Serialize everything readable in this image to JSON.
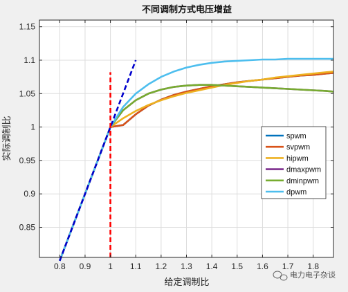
{
  "chart_data": {
    "type": "line",
    "title": "不同调制方式电压增益",
    "xlabel": "给定调制比",
    "ylabel": "实际调制比",
    "xlim": [
      0.72,
      1.88
    ],
    "ylim": [
      0.805,
      1.16
    ],
    "xticks": [
      0.8,
      0.9,
      1,
      1.1,
      1.2,
      1.3,
      1.4,
      1.5,
      1.6,
      1.7,
      1.8
    ],
    "xtick_labels": [
      "0.8",
      "0.9",
      "1",
      "1.1",
      "1.2",
      "1.3",
      "1.4",
      "1.5",
      "1.6",
      "1.7",
      "1.8"
    ],
    "yticks": [
      0.85,
      0.9,
      0.95,
      1,
      1.05,
      1.1,
      1.15
    ],
    "ytick_labels": [
      "0.85",
      "0.9",
      "0.95",
      "1",
      "1.05",
      "1.1",
      "1.15"
    ],
    "grid": true,
    "legend_position": "right",
    "series": [
      {
        "name": "spwm",
        "color": "#0072bd",
        "x": [
          0.8,
          0.85,
          0.9,
          0.95,
          1.0,
          1.05,
          1.1,
          1.15,
          1.2,
          1.25,
          1.3,
          1.35,
          1.4,
          1.45,
          1.5,
          1.55,
          1.6,
          1.65,
          1.7,
          1.75,
          1.8,
          1.85,
          1.88
        ],
        "y": [
          0.8,
          0.85,
          0.9,
          0.95,
          1.0,
          1.003,
          1.019,
          1.032,
          1.041,
          1.048,
          1.053,
          1.057,
          1.061,
          1.064,
          1.067,
          1.069,
          1.071,
          1.073,
          1.075,
          1.077,
          1.078,
          1.08,
          1.081
        ]
      },
      {
        "name": "svpwm",
        "color": "#d95319",
        "x": [
          0.8,
          0.85,
          0.9,
          0.95,
          1.0,
          1.05,
          1.1,
          1.15,
          1.2,
          1.25,
          1.3,
          1.35,
          1.4,
          1.45,
          1.5,
          1.55,
          1.6,
          1.65,
          1.7,
          1.75,
          1.8,
          1.85,
          1.88
        ],
        "y": [
          0.8,
          0.85,
          0.9,
          0.95,
          1.0,
          1.003,
          1.019,
          1.032,
          1.041,
          1.048,
          1.053,
          1.057,
          1.061,
          1.064,
          1.067,
          1.069,
          1.071,
          1.073,
          1.075,
          1.077,
          1.078,
          1.08,
          1.081
        ]
      },
      {
        "name": "hipwm",
        "color": "#edb120",
        "x": [
          0.8,
          0.85,
          0.9,
          0.95,
          1.0,
          1.05,
          1.1,
          1.15,
          1.2,
          1.25,
          1.3,
          1.35,
          1.4,
          1.45,
          1.5,
          1.55,
          1.6,
          1.65,
          1.7,
          1.75,
          1.8,
          1.85,
          1.88
        ],
        "y": [
          0.8,
          0.85,
          0.9,
          0.95,
          1.0,
          1.013,
          1.024,
          1.033,
          1.04,
          1.046,
          1.051,
          1.055,
          1.059,
          1.063,
          1.066,
          1.069,
          1.071,
          1.074,
          1.076,
          1.078,
          1.08,
          1.082,
          1.083
        ]
      },
      {
        "name": "dmaxpwm",
        "color": "#7e2f8e",
        "x": [
          0.8,
          0.85,
          0.9,
          0.95,
          1.0,
          1.05,
          1.1,
          1.15,
          1.2,
          1.25,
          1.3,
          1.35,
          1.4,
          1.45,
          1.5,
          1.55,
          1.6,
          1.65,
          1.7,
          1.75,
          1.8,
          1.85,
          1.88
        ],
        "y": [
          0.8,
          0.85,
          0.9,
          0.95,
          1.0,
          1.025,
          1.04,
          1.05,
          1.056,
          1.06,
          1.062,
          1.063,
          1.063,
          1.062,
          1.061,
          1.06,
          1.059,
          1.058,
          1.057,
          1.056,
          1.055,
          1.054,
          1.053
        ]
      },
      {
        "name": "dminpwm",
        "color": "#77ac30",
        "x": [
          0.8,
          0.85,
          0.9,
          0.95,
          1.0,
          1.05,
          1.1,
          1.15,
          1.2,
          1.25,
          1.3,
          1.35,
          1.4,
          1.45,
          1.5,
          1.55,
          1.6,
          1.65,
          1.7,
          1.75,
          1.8,
          1.85,
          1.88
        ],
        "y": [
          0.8,
          0.85,
          0.9,
          0.95,
          1.0,
          1.025,
          1.04,
          1.05,
          1.056,
          1.06,
          1.062,
          1.063,
          1.063,
          1.062,
          1.061,
          1.06,
          1.059,
          1.058,
          1.057,
          1.056,
          1.055,
          1.054,
          1.053
        ]
      },
      {
        "name": "dpwm",
        "color": "#4dbeee",
        "x": [
          0.8,
          0.85,
          0.9,
          0.95,
          1.0,
          1.05,
          1.1,
          1.15,
          1.2,
          1.25,
          1.3,
          1.35,
          1.4,
          1.45,
          1.5,
          1.55,
          1.6,
          1.65,
          1.7,
          1.75,
          1.8,
          1.85,
          1.88
        ],
        "y": [
          0.8,
          0.85,
          0.9,
          0.95,
          1.0,
          1.03,
          1.05,
          1.064,
          1.075,
          1.083,
          1.089,
          1.093,
          1.096,
          1.098,
          1.099,
          1.1,
          1.101,
          1.101,
          1.102,
          1.102,
          1.102,
          1.102,
          1.102
        ]
      }
    ],
    "reference_lines": [
      {
        "color": "#0000cc",
        "style": "dashed",
        "x": [
          0.8,
          1.1
        ],
        "y": [
          0.8,
          1.1
        ]
      },
      {
        "color": "#ff0000",
        "style": "dashed",
        "x": [
          1.0,
          1.0
        ],
        "y": [
          0.805,
          1.082
        ]
      }
    ]
  },
  "watermark": {
    "text": "电力电子杂谈",
    "icon": "chat-bubble-icon"
  }
}
